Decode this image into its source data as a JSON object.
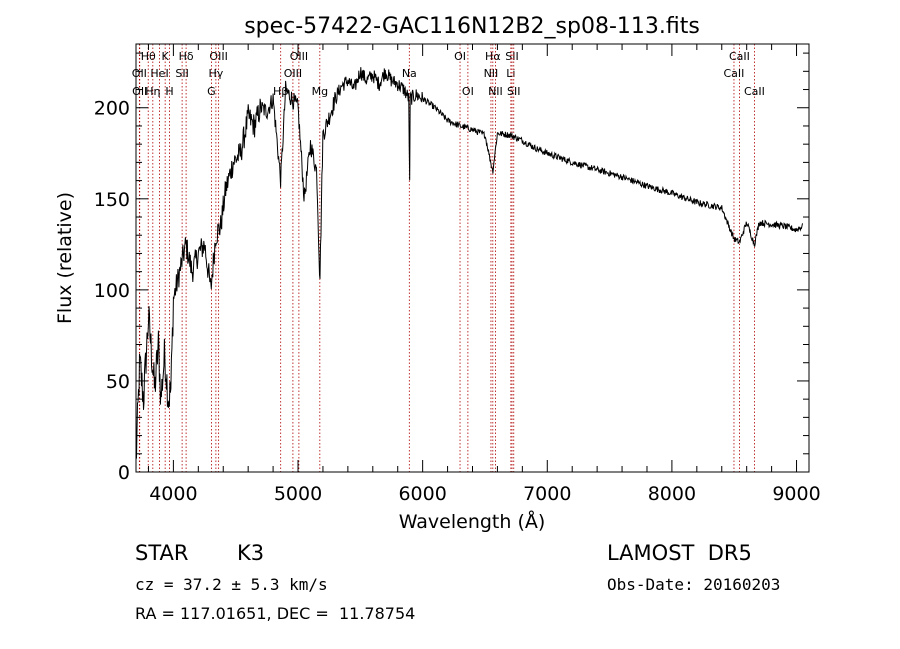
{
  "chart_data": {
    "type": "line",
    "title": "spec-57422-GAC116N12B2_sp08-113.fits",
    "xlabel": "Wavelength (Å)",
    "ylabel": "Flux (relative)",
    "xlim": [
      3700,
      9100
    ],
    "ylim": [
      0,
      235
    ],
    "xticks": [
      4000,
      5000,
      6000,
      7000,
      8000,
      9000
    ],
    "yticks": [
      0,
      50,
      100,
      150,
      200
    ],
    "grid": false,
    "series": [
      {
        "x": [
          3700,
          3730,
          3760,
          3800,
          3850,
          3880,
          3900,
          3930,
          3960,
          3980,
          4000,
          4050,
          4100,
          4150,
          4200,
          4250,
          4300,
          4340,
          4380,
          4420,
          4480,
          4540,
          4600,
          4650,
          4700,
          4750,
          4800,
          4861,
          4900,
          4950,
          5000,
          5050,
          5100,
          5150,
          5175,
          5200,
          5250,
          5300,
          5350,
          5400,
          5450,
          5500,
          5550,
          5600,
          5650,
          5700,
          5750,
          5800,
          5850,
          5890,
          5895,
          5900,
          5950,
          6000,
          6100,
          6200,
          6300,
          6400,
          6500,
          6563,
          6600,
          6700,
          6800,
          6900,
          7000,
          7200,
          7400,
          7600,
          7800,
          8000,
          8200,
          8400,
          8498,
          8542,
          8600,
          8662,
          8700,
          8800,
          8900,
          9000,
          9050
        ],
        "y": [
          5,
          60,
          40,
          85,
          45,
          70,
          40,
          65,
          40,
          45,
          95,
          110,
          125,
          110,
          120,
          125,
          100,
          130,
          135,
          155,
          170,
          175,
          195,
          190,
          200,
          198,
          205,
          160,
          210,
          205,
          200,
          150,
          180,
          165,
          105,
          185,
          195,
          205,
          212,
          215,
          210,
          220,
          215,
          218,
          213,
          220,
          215,
          213,
          210,
          205,
          145,
          205,
          207,
          205,
          200,
          193,
          190,
          188,
          185,
          165,
          186,
          185,
          182,
          178,
          175,
          170,
          166,
          162,
          157,
          153,
          148,
          145,
          128,
          126,
          137,
          125,
          137,
          136,
          135,
          133,
          135
        ]
      }
    ],
    "spectral_lines": [
      {
        "label": "Hθ",
        "x": 3798,
        "row": 0
      },
      {
        "label": "OII",
        "x": 3727,
        "row": 1
      },
      {
        "label": "OII",
        "x": 3730,
        "row": 2
      },
      {
        "label": "K",
        "x": 3934,
        "row": 0
      },
      {
        "label": "HeI",
        "x": 3889,
        "row": 1
      },
      {
        "label": "Hη",
        "x": 3835,
        "row": 2
      },
      {
        "label": "H",
        "x": 3969,
        "row": 2
      },
      {
        "label": "Hδ",
        "x": 4102,
        "row": 0
      },
      {
        "label": "SII",
        "x": 4070,
        "row": 1
      },
      {
        "label": "OIII",
        "x": 4363,
        "row": 0
      },
      {
        "label": "Hγ",
        "x": 4341,
        "row": 1
      },
      {
        "label": "G",
        "x": 4305,
        "row": 2
      },
      {
        "label": "OIII",
        "x": 5007,
        "row": 0
      },
      {
        "label": "OIII",
        "x": 4959,
        "row": 1
      },
      {
        "label": "Hβ",
        "x": 4861,
        "row": 2
      },
      {
        "label": "Mg",
        "x": 5175,
        "row": 2
      },
      {
        "label": "Na",
        "x": 5893,
        "row": 1
      },
      {
        "label": "OI",
        "x": 6300,
        "row": 0
      },
      {
        "label": "OI",
        "x": 6363,
        "row": 2
      },
      {
        "label": "Hα",
        "x": 6563,
        "row": 0
      },
      {
        "label": "SII",
        "x": 6717,
        "row": 0
      },
      {
        "label": "NII",
        "x": 6548,
        "row": 1
      },
      {
        "label": "Li",
        "x": 6708,
        "row": 1
      },
      {
        "label": "NII",
        "x": 6584,
        "row": 2
      },
      {
        "label": "SII",
        "x": 6731,
        "row": 2
      },
      {
        "label": "CaII",
        "x": 8542,
        "row": 0
      },
      {
        "label": "CaII",
        "x": 8498,
        "row": 1
      },
      {
        "label": "CaII",
        "x": 8662,
        "row": 2
      }
    ]
  },
  "footer": {
    "object_class": "STAR",
    "subclass": "K3",
    "survey": "LAMOST  DR5",
    "redshift": "cz = 37.2 ± 5.3 km/s",
    "obs_date": "Obs-Date: 20160203",
    "coords": "RA = 117.01651, DEC =  11.78754"
  },
  "colors": {
    "spectrum": "#000000",
    "line_markers": "#b00000",
    "axes": "#000000"
  }
}
